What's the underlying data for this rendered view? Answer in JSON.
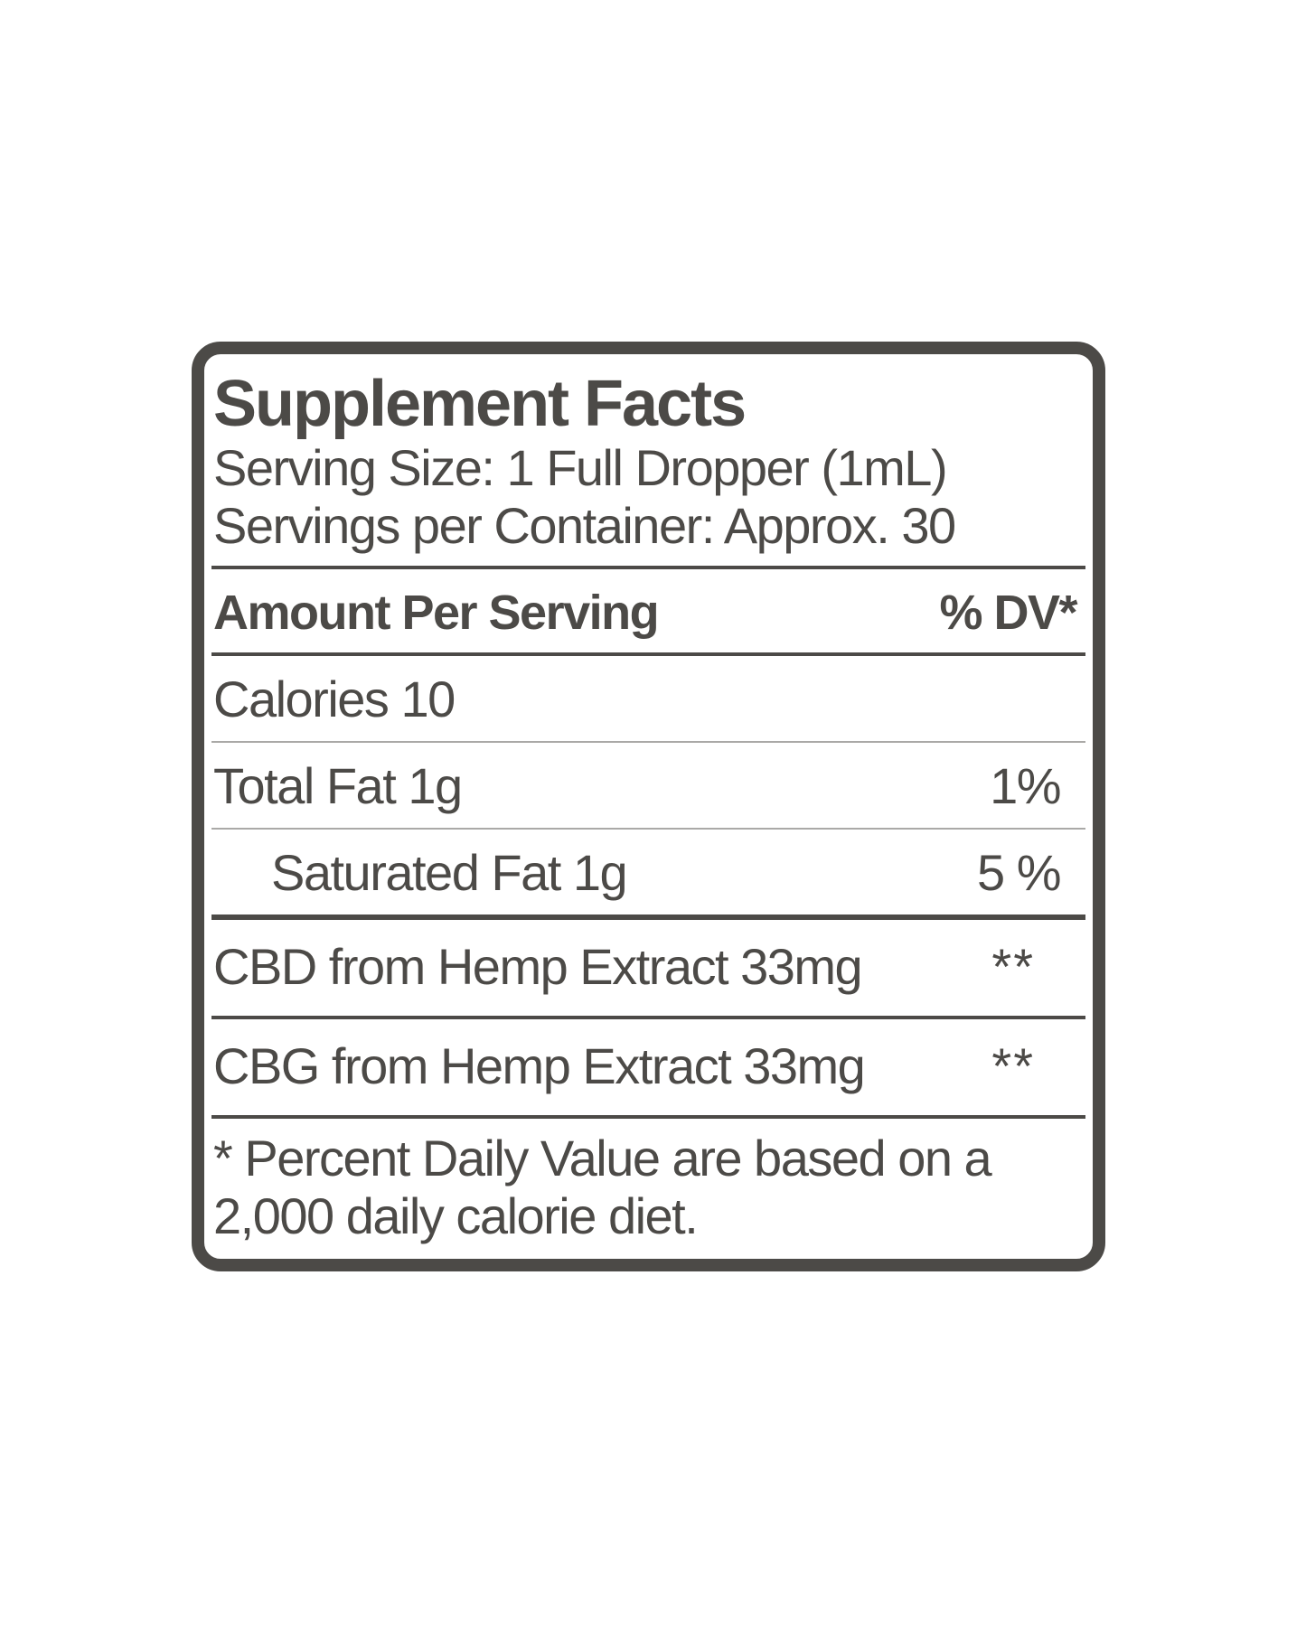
{
  "label": {
    "title": "Supplement Facts",
    "serving_size": "Serving Size: 1 Full Dropper (1mL)",
    "servings_per_container": "Servings per Container: Approx. 30",
    "columns": {
      "amount": "Amount Per Serving",
      "daily_value": "% DV*"
    },
    "rows": [
      {
        "name": "Calories 10",
        "value": ""
      },
      {
        "name": "Total Fat 1g",
        "value": "1%"
      },
      {
        "name": "Saturated Fat 1g",
        "value": "5 %"
      },
      {
        "name": "CBD from Hemp Extract 33mg",
        "value": "**"
      },
      {
        "name": "CBG from Hemp Extract 33mg",
        "value": "**"
      }
    ],
    "footnote": {
      "line1": "* Percent Daily Value are based on a",
      "line2": "2,000 daily calorie diet."
    },
    "colors": {
      "text": "#4c4a47",
      "border": "#4c4a47",
      "rule_dark": "#4c4a47",
      "rule_light": "#aaa9a7",
      "background": "#ffffff"
    }
  }
}
